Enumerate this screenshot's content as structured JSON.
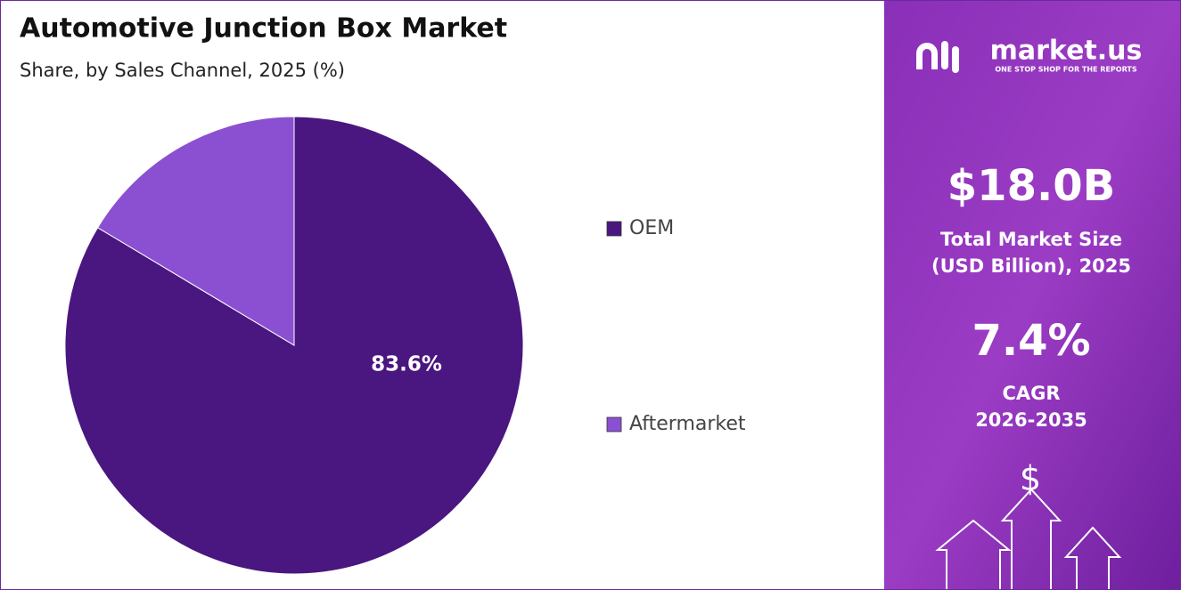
{
  "chart_data": {
    "type": "pie",
    "title": "Automotive Junction Box Market",
    "subtitle": "Share, by Sales Channel, 2025 (%)",
    "categories": [
      "OEM",
      "Aftermarket"
    ],
    "values": [
      83.6,
      16.4
    ],
    "value_labels": [
      "83.6%",
      null
    ],
    "colors": [
      "#4a1680",
      "#8b50d2"
    ]
  },
  "panel": {
    "brand": "market.us",
    "tagline": "ONE STOP SHOP FOR THE REPORTS",
    "market_size": "$18.0B",
    "market_size_label": [
      "Total Market Size",
      "(USD Billion), 2025"
    ],
    "cagr": "7.4%",
    "cagr_label": [
      "CAGR",
      "2026-2035"
    ]
  }
}
